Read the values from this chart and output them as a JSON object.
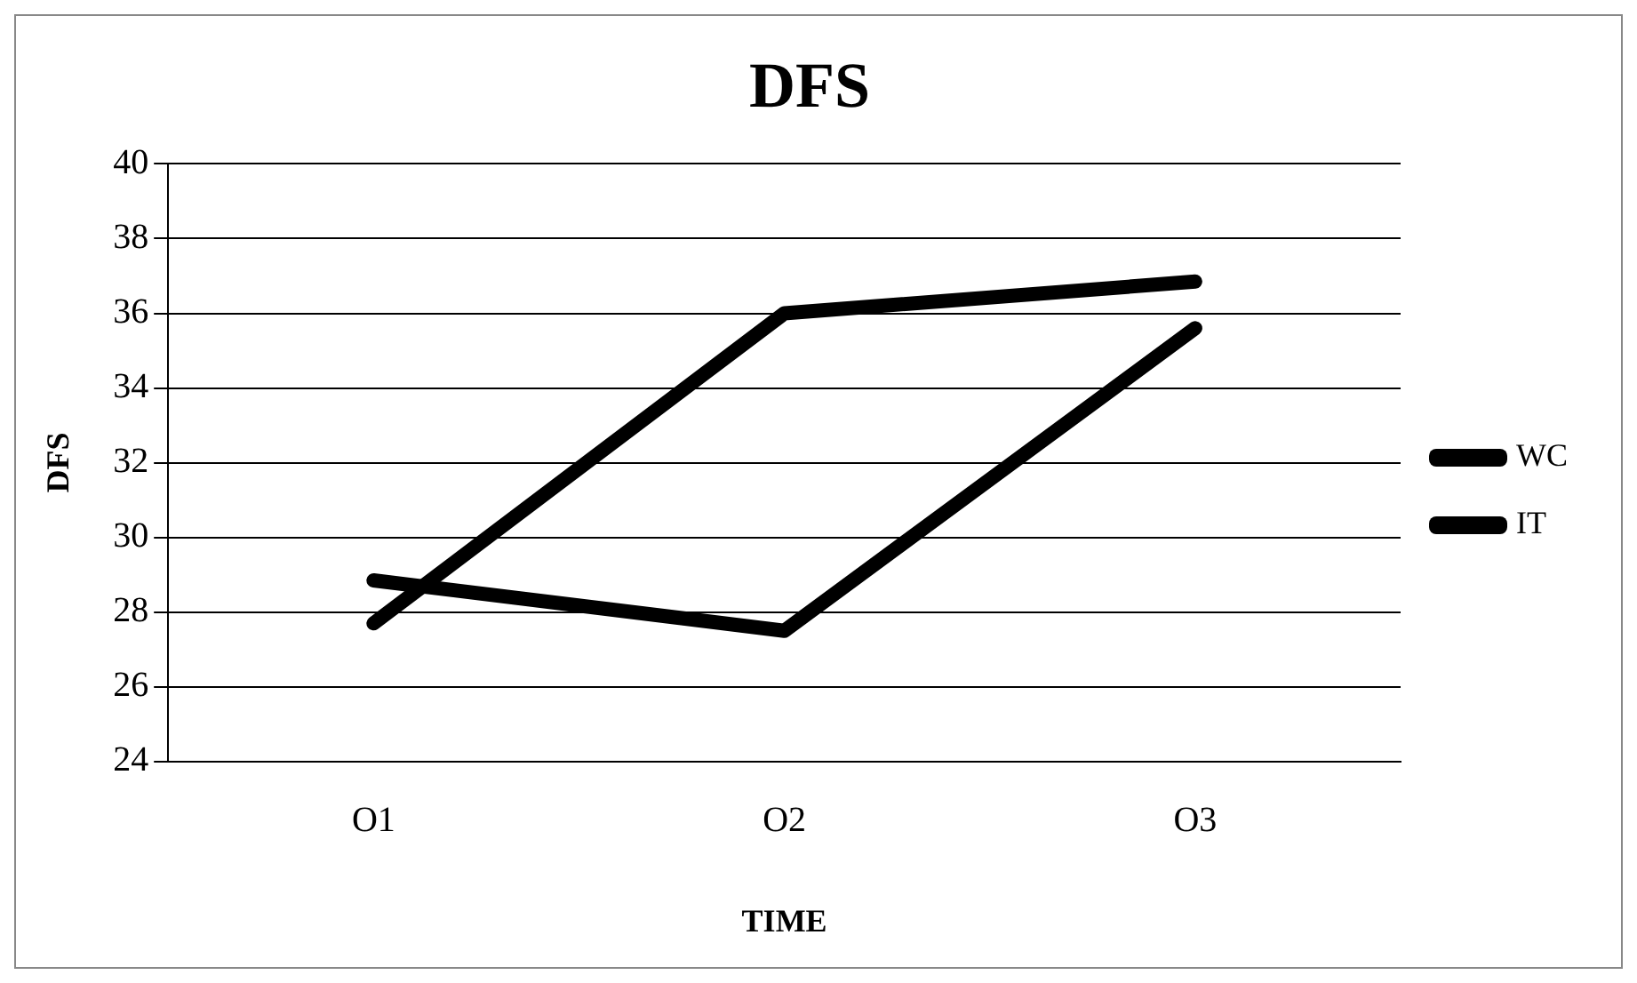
{
  "chart_data": {
    "type": "line",
    "title": "DFS",
    "xlabel": "TIME",
    "ylabel": "DFS",
    "categories": [
      "O1",
      "O2",
      "O3"
    ],
    "series": [
      {
        "name": "WC",
        "color": "#000000",
        "values": [
          27.7,
          36.0,
          36.85
        ]
      },
      {
        "name": "IT",
        "color": "#000000",
        "values": [
          28.85,
          27.5,
          35.6
        ]
      }
    ],
    "ylim": [
      24,
      40
    ],
    "yticks": [
      24,
      26,
      28,
      30,
      32,
      34,
      36,
      38,
      40
    ],
    "grid": "y",
    "legend": "right",
    "marker": "none",
    "line_style": "solid"
  }
}
